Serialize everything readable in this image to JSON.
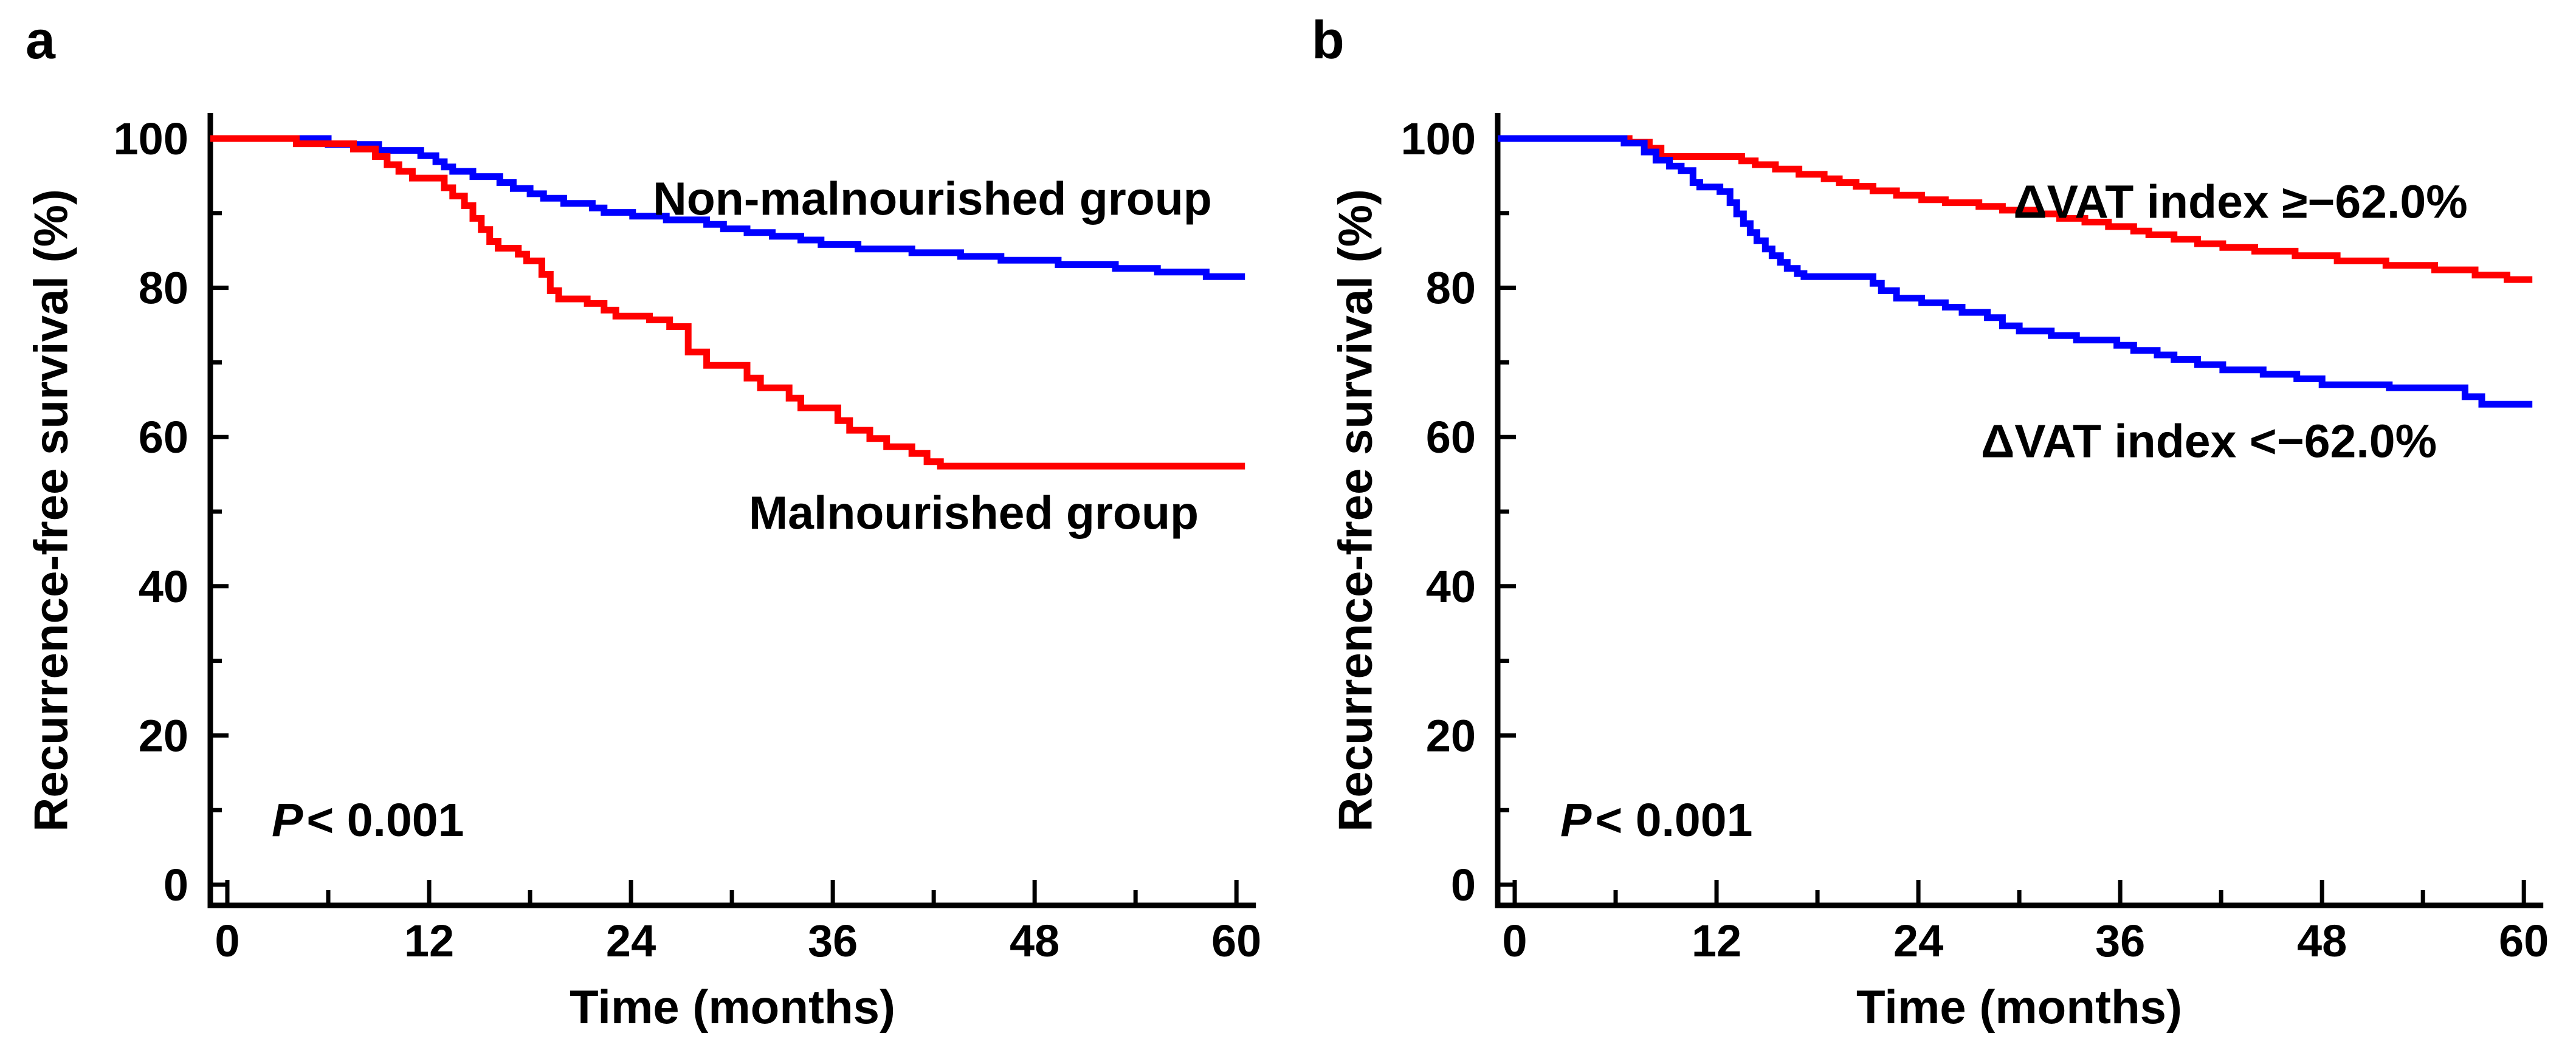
{
  "figure_background": "#ffffff",
  "text_color": "#000000",
  "panel_letters": {
    "a": "a",
    "b": "b"
  },
  "chart_data": [
    {
      "type": "line",
      "subtype": "kaplan-meier-step",
      "panel_letter": "a",
      "xlabel": "Time (months)",
      "ylabel": "Recurrence-free survival (%)",
      "xlim": [
        0,
        60
      ],
      "ylim": [
        0,
        100
      ],
      "x_ticks": [
        0,
        12,
        24,
        36,
        48,
        60
      ],
      "x_minor_ticks": [
        6,
        18,
        30,
        42,
        54
      ],
      "y_ticks": [
        0,
        20,
        40,
        60,
        80,
        100
      ],
      "y_minor_ticks": [
        10,
        30,
        50,
        70,
        90
      ],
      "grid": "off",
      "legend_position": "inline-labels",
      "p_value": {
        "symbol": "P",
        "rest": "< 0.001"
      },
      "series": [
        {
          "name": "Non-malnourished group",
          "color": "#0000ff",
          "start": [
            0,
            100
          ],
          "end_value": 81.5,
          "steps": [
            [
              6,
              99.2
            ],
            [
              9,
              98.4
            ],
            [
              11.5,
              97.7
            ],
            [
              12.4,
              96.9
            ],
            [
              12.9,
              96.2
            ],
            [
              13.4,
              95.6
            ],
            [
              14.6,
              94.9
            ],
            [
              16.2,
              94.1
            ],
            [
              17,
              93.3
            ],
            [
              18,
              92.6
            ],
            [
              18.8,
              92
            ],
            [
              20,
              91.3
            ],
            [
              21.7,
              90.7
            ],
            [
              22.4,
              90.1
            ],
            [
              24.1,
              89.6
            ],
            [
              26.1,
              89.1
            ],
            [
              28.5,
              88.5
            ],
            [
              29.5,
              87.9
            ],
            [
              30.9,
              87.4
            ],
            [
              32.4,
              86.9
            ],
            [
              34.1,
              86.4
            ],
            [
              35.3,
              85.8
            ],
            [
              37.5,
              85.2
            ],
            [
              40.7,
              84.7
            ],
            [
              43.6,
              84.2
            ],
            [
              46,
              83.7
            ],
            [
              49.4,
              83.1
            ],
            [
              52.8,
              82.6
            ],
            [
              55.3,
              82.1
            ],
            [
              58.2,
              81.5
            ]
          ]
        },
        {
          "name": "Malnourished group",
          "color": "#ff0000",
          "start": [
            0,
            100
          ],
          "end_value": 56.1,
          "steps": [
            [
              4.1,
              99.3
            ],
            [
              7.5,
              98.6
            ],
            [
              8.8,
              97.6
            ],
            [
              9.5,
              96.5
            ],
            [
              10.2,
              95.6
            ],
            [
              11,
              94.7
            ],
            [
              12.9,
              93.4
            ],
            [
              13.4,
              92.3
            ],
            [
              14.1,
              91
            ],
            [
              14.6,
              89.3
            ],
            [
              15.1,
              87.8
            ],
            [
              15.6,
              86.2
            ],
            [
              16.1,
              85.3
            ],
            [
              17.3,
              84.5
            ],
            [
              17.8,
              83.6
            ],
            [
              18.7,
              81.8
            ],
            [
              19.2,
              79.6
            ],
            [
              19.7,
              78.5
            ],
            [
              21.4,
              77.9
            ],
            [
              22.4,
              77
            ],
            [
              23.1,
              76.2
            ],
            [
              25.1,
              75.7
            ],
            [
              26.3,
              74.8
            ],
            [
              27.4,
              71.4
            ],
            [
              28.5,
              69.6
            ],
            [
              30.9,
              67.9
            ],
            [
              31.7,
              66.6
            ],
            [
              33.4,
              65.2
            ],
            [
              34.1,
              63.9
            ],
            [
              36.3,
              62.2
            ],
            [
              37,
              60.9
            ],
            [
              38.2,
              59.8
            ],
            [
              39.2,
              58.7
            ],
            [
              40.7,
              57.8
            ],
            [
              41.6,
              56.7
            ],
            [
              42.4,
              56.1
            ]
          ]
        }
      ]
    },
    {
      "type": "line",
      "subtype": "kaplan-meier-step",
      "panel_letter": "b",
      "xlabel": "Time (months)",
      "ylabel": "Recurrence-free survival (%)",
      "xlim": [
        0,
        60
      ],
      "ylim": [
        0,
        100
      ],
      "x_ticks": [
        0,
        12,
        24,
        36,
        48,
        60
      ],
      "x_minor_ticks": [
        6,
        18,
        30,
        42,
        54
      ],
      "y_ticks": [
        0,
        20,
        40,
        60,
        80,
        100
      ],
      "y_minor_ticks": [
        10,
        30,
        50,
        70,
        90
      ],
      "grid": "off",
      "legend_position": "inline-labels",
      "p_value": {
        "symbol": "P",
        "rest": "< 0.001"
      },
      "series": [
        {
          "name": "ΔVAT index ≥−62.0%",
          "color": "#ff0000",
          "start": [
            0,
            100
          ],
          "end_value": 81.1,
          "steps": [
            [
              6.8,
              99.5
            ],
            [
              8,
              98.7
            ],
            [
              8.7,
              97.6
            ],
            [
              13.5,
              97
            ],
            [
              14.3,
              96.5
            ],
            [
              15.5,
              95.9
            ],
            [
              16.9,
              95.2
            ],
            [
              18.4,
              94.6
            ],
            [
              19.3,
              94.1
            ],
            [
              20.3,
              93.6
            ],
            [
              21.3,
              93
            ],
            [
              22.7,
              92.4
            ],
            [
              24.2,
              91.8
            ],
            [
              25.6,
              91.4
            ],
            [
              27.6,
              90.9
            ],
            [
              29,
              90.4
            ],
            [
              31,
              89.9
            ],
            [
              32.4,
              89.3
            ],
            [
              33.9,
              88.8
            ],
            [
              35.3,
              88.2
            ],
            [
              36.8,
              87.6
            ],
            [
              37.7,
              87.1
            ],
            [
              39.2,
              86.5
            ],
            [
              40.6,
              85.9
            ],
            [
              42.1,
              85.4
            ],
            [
              44,
              84.9
            ],
            [
              46.4,
              84.3
            ],
            [
              48.9,
              83.6
            ],
            [
              51.8,
              83
            ],
            [
              54.7,
              82.4
            ],
            [
              57.1,
              81.7
            ],
            [
              59,
              81.1
            ]
          ]
        },
        {
          "name": "ΔVAT index <−62.0%",
          "color": "#0000ff",
          "start": [
            0,
            100
          ],
          "end_value": 64.4,
          "steps": [
            [
              6.5,
              99.4
            ],
            [
              7.7,
              98.2
            ],
            [
              8.4,
              97.1
            ],
            [
              9.2,
              96.3
            ],
            [
              9.9,
              95.7
            ],
            [
              10.6,
              94.1
            ],
            [
              11,
              93.5
            ],
            [
              12.2,
              92.9
            ],
            [
              12.8,
              91.4
            ],
            [
              13.2,
              89.9
            ],
            [
              13.6,
              88.6
            ],
            [
              14,
              87.4
            ],
            [
              14.4,
              86.3
            ],
            [
              14.9,
              85.2
            ],
            [
              15.3,
              84.3
            ],
            [
              15.8,
              83.4
            ],
            [
              16.2,
              82.6
            ],
            [
              16.8,
              81.9
            ],
            [
              17.2,
              81.5
            ],
            [
              21.3,
              80.6
            ],
            [
              21.8,
              79.6
            ],
            [
              22.7,
              78.6
            ],
            [
              24.2,
              78
            ],
            [
              25.6,
              77.4
            ],
            [
              26.6,
              76.7
            ],
            [
              28.1,
              76
            ],
            [
              29,
              74.9
            ],
            [
              30,
              74.2
            ],
            [
              31.9,
              73.6
            ],
            [
              33.4,
              73
            ],
            [
              35.8,
              72.3
            ],
            [
              36.8,
              71.6
            ],
            [
              38.2,
              71
            ],
            [
              39.2,
              70.4
            ],
            [
              40.6,
              69.7
            ],
            [
              42.1,
              69
            ],
            [
              44.5,
              68.4
            ],
            [
              46.5,
              67.8
            ],
            [
              48,
              67
            ],
            [
              52,
              66.6
            ],
            [
              56.5,
              65.4
            ],
            [
              57.5,
              64.4
            ]
          ]
        }
      ]
    }
  ]
}
